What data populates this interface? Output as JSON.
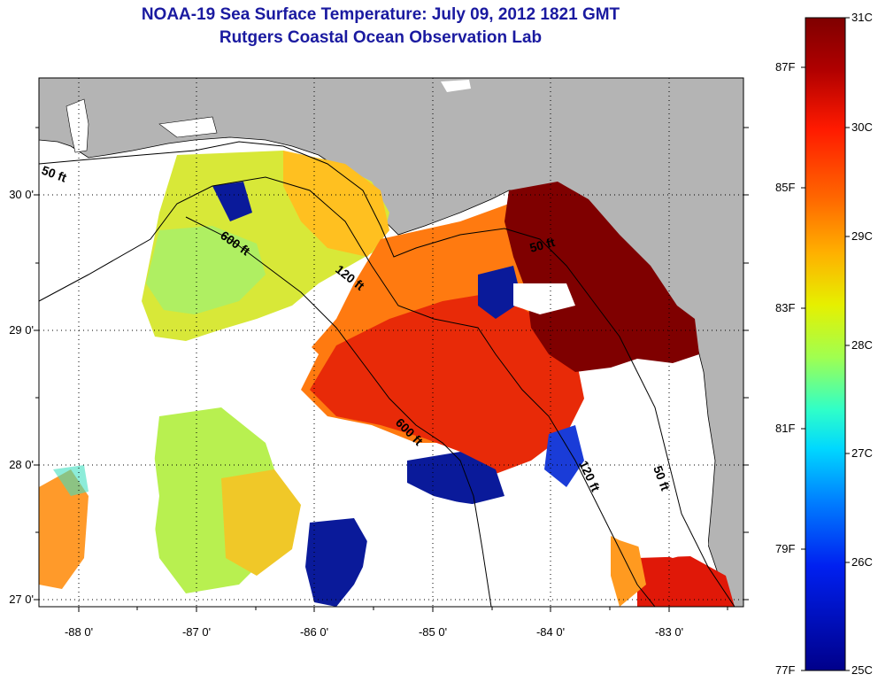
{
  "title": {
    "line1": "NOAA-19 Sea Surface Temperature:  July 09, 2012 1821 GMT",
    "line2": "Rutgers Coastal Ocean Observation Lab"
  },
  "colors": {
    "land": "#b4b4b4",
    "cloud": "#ffffff",
    "grid": "#000000"
  },
  "map": {
    "lat_ticks": [
      "30 0'",
      "29 0'",
      "28 0'",
      "27 0'"
    ],
    "lon_ticks": [
      "-88 0'",
      "-87 0'",
      "-86 0'",
      "-85 0'",
      "-84 0'",
      "-83 0'"
    ],
    "isobath_labels": [
      "50 ft",
      "600 ft",
      "120 ft",
      "50 ft",
      "600 ft",
      "120 ft",
      "50 ft"
    ]
  },
  "colorbar": {
    "celsius": [
      "31C",
      "30C",
      "29C",
      "28C",
      "27C",
      "26C",
      "25C"
    ],
    "fahrenheit": [
      "87F",
      "85F",
      "83F",
      "81F",
      "79F",
      "77F"
    ],
    "gradient": [
      "#7f0000",
      "#d80000",
      "#ff2a00",
      "#ff7a00",
      "#ffc000",
      "#e8f000",
      "#9cff5a",
      "#2affc8",
      "#00c8ff",
      "#0070ff",
      "#0010e0",
      "#00008a"
    ]
  }
}
